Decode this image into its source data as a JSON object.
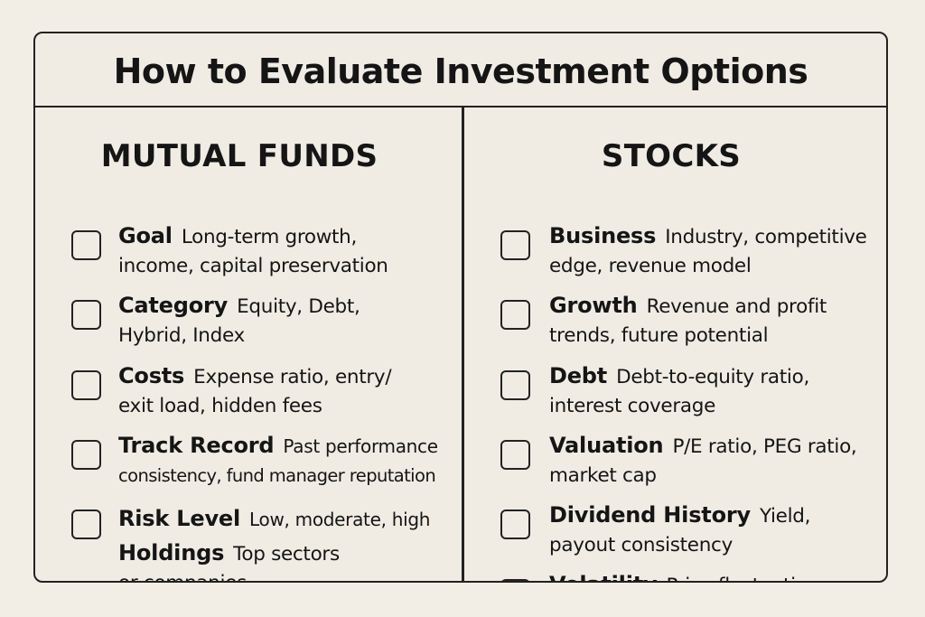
{
  "title": "How to Evaluate Investment Options",
  "mutual_funds": {
    "heading": "MUTUAL FUNDS",
    "items": [
      {
        "label": "Goal",
        "line1": "Long-term growth,",
        "line2": "income, capital preservation"
      },
      {
        "label": "Category",
        "line1": "Equity, Debt,",
        "line2": "Hybrid, Index"
      },
      {
        "label": "Costs",
        "line1": "Expense ratio, entry/",
        "line2": "exit load, hidden fees"
      },
      {
        "label": "Track Record",
        "line1": "Past performance",
        "line2": "consistency, fund manager reputation"
      },
      {
        "label": "Risk Level",
        "line1": "Low, moderate, high",
        "line2": ""
      },
      {
        "label": "Holdings",
        "line1": "Top sectors",
        "line2": "or companies"
      }
    ]
  },
  "stocks": {
    "heading": "STOCKS",
    "items": [
      {
        "label": "Business",
        "line1": "Industry, competitive",
        "line2": "edge, revenue model"
      },
      {
        "label": "Growth",
        "line1": "Revenue and profit",
        "line2": "trends, future potential"
      },
      {
        "label": "Debt",
        "line1": "Debt-to-equity ratio,",
        "line2": "interest coverage"
      },
      {
        "label": "Valuation",
        "line1": "P/E ratio, PEG ratio,",
        "line2": "market cap"
      },
      {
        "label": "Dividend History",
        "line1": "Yield,",
        "line2": "payout consistency"
      },
      {
        "label": "Volatility",
        "line1": "Price fluctuations,",
        "line2": ""
      }
    ]
  }
}
